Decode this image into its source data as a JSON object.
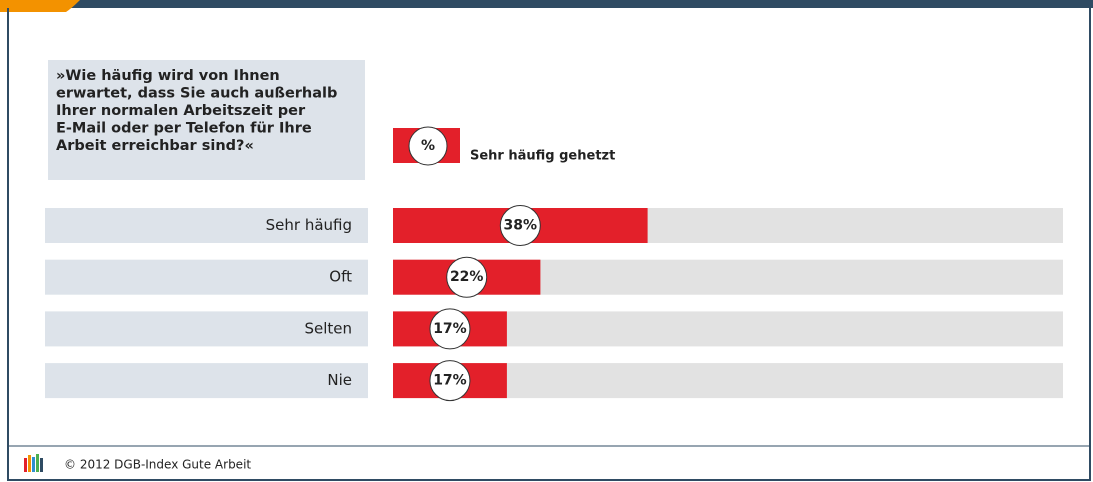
{
  "chart_data": {
    "type": "bar",
    "question": [
      "»Wie häufig wird von Ihnen",
      "erwartet, dass Sie auch außerhalb",
      "Ihrer normalen Arbeitszeit per",
      "E-Mail oder per Telefon für Ihre",
      "Arbeit erreichbar sind?«"
    ],
    "legend_symbol": "%",
    "categories": [
      "Sehr häufig",
      "Oft",
      "Selten",
      "Nie"
    ],
    "series": [
      {
        "name": "Sehr häufig gehetzt",
        "color": "#e3202a",
        "values": [
          38,
          22,
          17,
          17
        ],
        "value_labels": [
          "38%",
          "22%",
          "17%",
          "17%"
        ]
      }
    ],
    "xlim": [
      0,
      100
    ],
    "footer": "© 2012 DGB-Index Gute Arbeit"
  }
}
